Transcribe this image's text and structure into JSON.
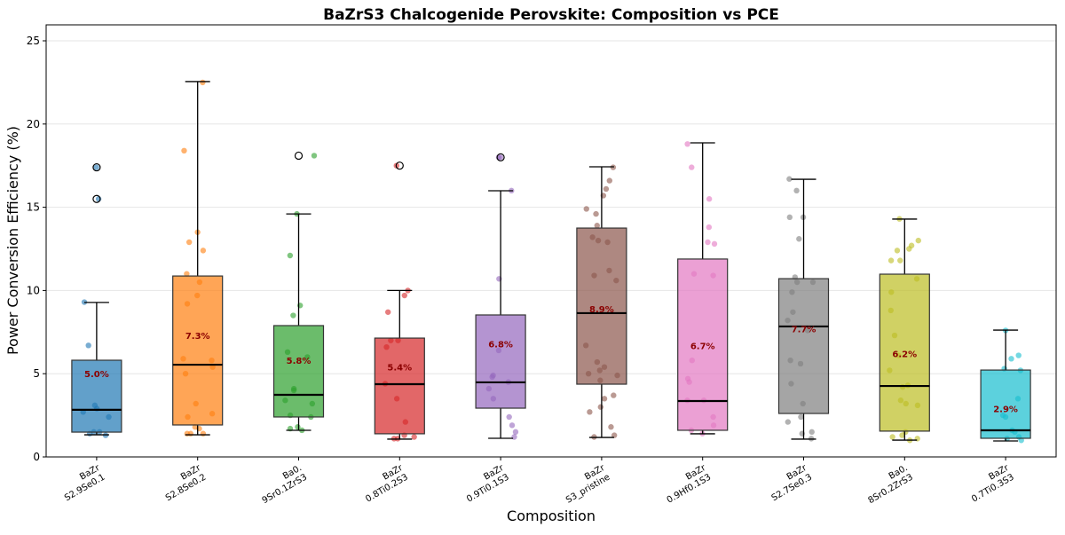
{
  "chart_data": {
    "type": "box",
    "title": "BaZrS3 Chalcogenide Perovskite: Composition vs PCE",
    "xlabel": "Composition",
    "ylabel": "Power Conversion Efficiency (%)",
    "ylim": [
      0,
      26
    ],
    "yticks": [
      0,
      5,
      10,
      15,
      20,
      25
    ],
    "grid": "y",
    "categories": [
      [
        "BaZr",
        "S2.9Se0.1"
      ],
      [
        "BaZr",
        "S2.8Se0.2"
      ],
      [
        "Ba0.",
        "9Sr0.1ZrS3"
      ],
      [
        "BaZr",
        "0.8Ti0.2S3"
      ],
      [
        "BaZr",
        "0.9Ti0.1S3"
      ],
      [
        "BaZr",
        "S3_pristine"
      ],
      [
        "BaZr",
        "0.9Hf0.1S3"
      ],
      [
        "BaZr",
        "S2.7Se0.3"
      ],
      [
        "Ba0.",
        "8Sr0.2ZrS3"
      ],
      [
        "BaZr",
        "0.7Ti0.3S3"
      ]
    ],
    "colors": [
      "#1f77b4",
      "#ff7f0e",
      "#2ca02c",
      "#d62728",
      "#9467bd",
      "#8c564b",
      "#e377c2",
      "#7f7f7f",
      "#bcbd22",
      "#17becf"
    ],
    "mean_label_color": "#8b0000",
    "boxes": [
      {
        "whisker_low": 1.33,
        "q1": 1.49,
        "median": 2.83,
        "q3": 5.81,
        "whisker_high": 9.28,
        "mean_label": "5.0%",
        "mean": 5.0,
        "outliers": [
          17.4,
          15.5
        ]
      },
      {
        "whisker_low": 1.33,
        "q1": 1.92,
        "median": 5.54,
        "q3": 10.87,
        "whisker_high": 22.55,
        "mean_label": "7.3%",
        "mean": 7.3,
        "outliers": []
      },
      {
        "whisker_low": 1.6,
        "q1": 2.4,
        "median": 3.73,
        "q3": 7.89,
        "whisker_high": 14.6,
        "mean_label": "5.8%",
        "mean": 5.8,
        "outliers": [
          18.1
        ]
      },
      {
        "whisker_low": 1.07,
        "q1": 1.39,
        "median": 4.37,
        "q3": 7.14,
        "whisker_high": 10.0,
        "mean_label": "5.4%",
        "mean": 5.4,
        "outliers": [
          17.5
        ]
      },
      {
        "whisker_low": 1.12,
        "q1": 2.93,
        "median": 4.48,
        "q3": 8.53,
        "whisker_high": 15.99,
        "mean_label": "6.8%",
        "mean": 6.8,
        "outliers": [
          18.0
        ]
      },
      {
        "whisker_low": 1.17,
        "q1": 4.37,
        "median": 8.64,
        "q3": 13.75,
        "whisker_high": 17.43,
        "mean_label": "8.9%",
        "mean": 8.9,
        "outliers": []
      },
      {
        "whisker_low": 1.39,
        "q1": 1.6,
        "median": 3.36,
        "q3": 11.89,
        "whisker_high": 18.87,
        "mean_label": "6.7%",
        "mean": 6.7,
        "outliers": []
      },
      {
        "whisker_low": 1.07,
        "q1": 2.61,
        "median": 7.84,
        "q3": 10.71,
        "whisker_high": 16.68,
        "mean_label": "7.7%",
        "mean": 7.7,
        "outliers": []
      },
      {
        "whisker_low": 1.01,
        "q1": 1.55,
        "median": 4.26,
        "q3": 10.98,
        "whisker_high": 14.29,
        "mean_label": "6.2%",
        "mean": 6.2,
        "outliers": []
      },
      {
        "whisker_low": 0.96,
        "q1": 1.12,
        "median": 1.6,
        "q3": 5.22,
        "whisker_high": 7.62,
        "mean_label": "2.9%",
        "mean": 2.9,
        "outliers": []
      }
    ],
    "points": [
      [
        17.4,
        15.5,
        9.3,
        6.7,
        3.1,
        2.9,
        2.7,
        2.4,
        1.5,
        1.5,
        1.4,
        1.3
      ],
      [
        22.5,
        18.4,
        13.5,
        12.9,
        12.4,
        11.0,
        10.5,
        9.7,
        9.2,
        5.9,
        5.8,
        5.4,
        5.0,
        3.2,
        2.6,
        2.4,
        1.8,
        1.7,
        1.4,
        1.4,
        1.4
      ],
      [
        18.1,
        14.6,
        12.1,
        9.1,
        8.5,
        6.3,
        6.0,
        4.1,
        4.0,
        3.4,
        3.2,
        2.5,
        2.4,
        1.8,
        1.7,
        1.6
      ],
      [
        17.5,
        10.0,
        9.7,
        8.7,
        7.0,
        7.0,
        6.6,
        4.4,
        3.5,
        2.1,
        1.3,
        1.2,
        1.1,
        1.1
      ],
      [
        18.0,
        18.0,
        16.0,
        10.7,
        6.4,
        4.9,
        4.8,
        4.5,
        4.1,
        3.5,
        2.4,
        1.9,
        1.5,
        1.2
      ],
      [
        17.4,
        16.6,
        16.1,
        15.7,
        14.9,
        14.6,
        13.9,
        13.2,
        13.0,
        12.9,
        11.2,
        10.9,
        10.6,
        6.7,
        5.7,
        5.4,
        5.2,
        5.0,
        4.9,
        4.6,
        3.7,
        3.5,
        3.0,
        2.7,
        1.8,
        1.3,
        1.2
      ],
      [
        18.8,
        17.4,
        15.5,
        13.8,
        12.9,
        12.8,
        11.0,
        10.9,
        5.8,
        4.7,
        4.5,
        3.4,
        3.4,
        2.4,
        1.9,
        1.6,
        1.4
      ],
      [
        16.7,
        16.0,
        14.4,
        14.4,
        13.1,
        10.8,
        10.5,
        10.5,
        9.9,
        8.7,
        8.2,
        7.6,
        5.8,
        5.6,
        4.4,
        3.2,
        2.4,
        2.1,
        1.5,
        1.4,
        1.1
      ],
      [
        14.3,
        13.0,
        12.7,
        12.5,
        12.4,
        11.8,
        11.8,
        10.7,
        9.9,
        8.8,
        7.3,
        6.1,
        5.2,
        4.3,
        4.2,
        3.4,
        3.2,
        3.1,
        1.5,
        1.3,
        1.2,
        1.1,
        1.0
      ],
      [
        7.6,
        6.1,
        5.9,
        5.3,
        5.2,
        3.5,
        2.5,
        2.4,
        1.6,
        1.5,
        1.2,
        1.1,
        1.0
      ]
    ]
  }
}
